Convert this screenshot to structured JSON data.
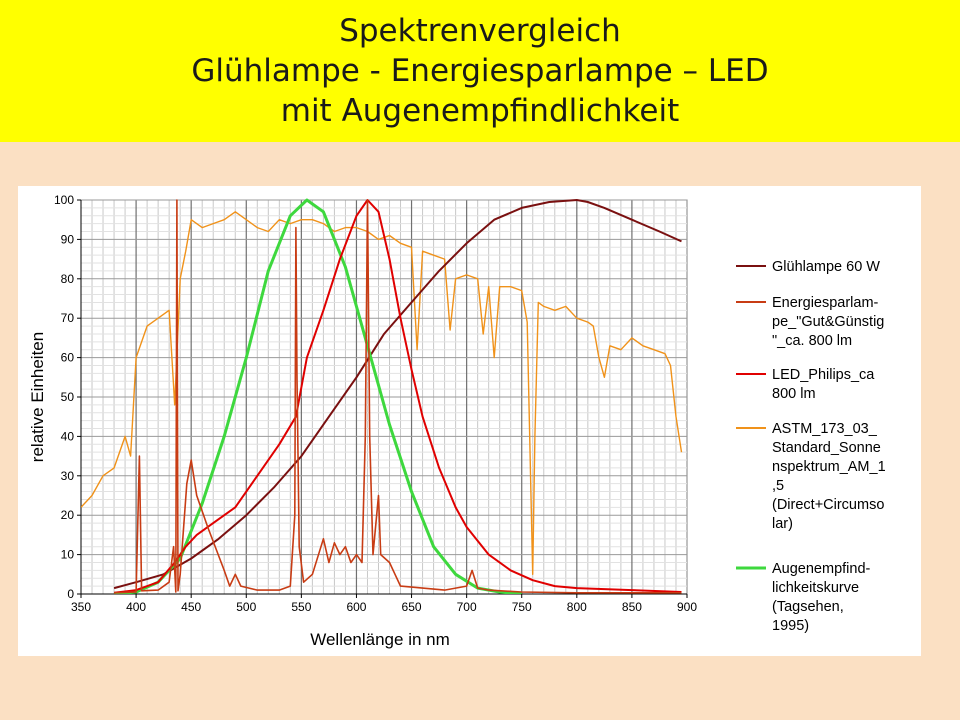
{
  "title": {
    "line1": "Spektrenvergleich",
    "line2": "Glühlampe - Energiesparlampe – LED",
    "line3": "mit Augenempfindlichkeit"
  },
  "chart_data": {
    "type": "line",
    "xlabel": "Wellenlänge in nm",
    "ylabel": "relative Einheiten",
    "xlim": [
      350,
      900
    ],
    "ylim": [
      0,
      100
    ],
    "xticks": [
      350,
      400,
      450,
      500,
      550,
      600,
      650,
      700,
      750,
      800,
      850,
      900
    ],
    "yticks": [
      0,
      10,
      20,
      30,
      40,
      50,
      60,
      70,
      80,
      90,
      100
    ],
    "grid": true,
    "legend_position": "right",
    "series": [
      {
        "name": "Glühlampe 60 W",
        "color": "#7a1010",
        "points": [
          [
            380,
            1.5
          ],
          [
            400,
            3
          ],
          [
            425,
            5
          ],
          [
            450,
            9
          ],
          [
            475,
            14
          ],
          [
            500,
            20
          ],
          [
            525,
            27
          ],
          [
            550,
            35
          ],
          [
            575,
            45
          ],
          [
            600,
            55
          ],
          [
            625,
            66
          ],
          [
            650,
            74
          ],
          [
            675,
            82
          ],
          [
            700,
            89
          ],
          [
            725,
            95
          ],
          [
            750,
            98
          ],
          [
            775,
            99.5
          ],
          [
            800,
            100
          ],
          [
            810,
            99.5
          ],
          [
            825,
            98
          ],
          [
            850,
            95
          ],
          [
            875,
            92
          ],
          [
            895,
            89.5
          ]
        ]
      },
      {
        "name": "Energiesparlam-pe_\"Gut&Günstig\"_ca. 800 lm",
        "color": "#c83c14",
        "points": [
          [
            380,
            0.3
          ],
          [
            400,
            0.5
          ],
          [
            403,
            35
          ],
          [
            405,
            0.8
          ],
          [
            420,
            1
          ],
          [
            430,
            3
          ],
          [
            434,
            12
          ],
          [
            436,
            0.5
          ],
          [
            437,
            100
          ],
          [
            438,
            0.8
          ],
          [
            440,
            5
          ],
          [
            446,
            28
          ],
          [
            450,
            34
          ],
          [
            455,
            25
          ],
          [
            465,
            17
          ],
          [
            480,
            6
          ],
          [
            485,
            2
          ],
          [
            490,
            5
          ],
          [
            495,
            2
          ],
          [
            510,
            1
          ],
          [
            530,
            1
          ],
          [
            540,
            2
          ],
          [
            544,
            20
          ],
          [
            545,
            93
          ],
          [
            546,
            55
          ],
          [
            548,
            12
          ],
          [
            552,
            3
          ],
          [
            560,
            5
          ],
          [
            570,
            14
          ],
          [
            575,
            8
          ],
          [
            580,
            13
          ],
          [
            585,
            10
          ],
          [
            590,
            12
          ],
          [
            595,
            8
          ],
          [
            600,
            10
          ],
          [
            605,
            8
          ],
          [
            608,
            40
          ],
          [
            610,
            100
          ],
          [
            612,
            40
          ],
          [
            615,
            10
          ],
          [
            620,
            25
          ],
          [
            622,
            10
          ],
          [
            630,
            8
          ],
          [
            635,
            5
          ],
          [
            640,
            2
          ],
          [
            660,
            1.5
          ],
          [
            680,
            1
          ],
          [
            700,
            2
          ],
          [
            705,
            6
          ],
          [
            710,
            1.5
          ],
          [
            720,
            1
          ],
          [
            750,
            0.5
          ],
          [
            800,
            0.3
          ],
          [
            895,
            0.3
          ]
        ]
      },
      {
        "name": "LED_Philips_ca 800 lm",
        "color": "#e00000",
        "points": [
          [
            380,
            0.3
          ],
          [
            400,
            1
          ],
          [
            420,
            3
          ],
          [
            435,
            8
          ],
          [
            445,
            12
          ],
          [
            455,
            15
          ],
          [
            470,
            18
          ],
          [
            490,
            22
          ],
          [
            510,
            30
          ],
          [
            530,
            38
          ],
          [
            545,
            45
          ],
          [
            555,
            60
          ],
          [
            570,
            72
          ],
          [
            585,
            85
          ],
          [
            600,
            96
          ],
          [
            610,
            100
          ],
          [
            620,
            97
          ],
          [
            630,
            85
          ],
          [
            640,
            70
          ],
          [
            650,
            57
          ],
          [
            660,
            45
          ],
          [
            675,
            32
          ],
          [
            690,
            22
          ],
          [
            700,
            17
          ],
          [
            720,
            10
          ],
          [
            740,
            6
          ],
          [
            760,
            3.5
          ],
          [
            780,
            2
          ],
          [
            800,
            1.5
          ],
          [
            850,
            1
          ],
          [
            895,
            0.5
          ]
        ]
      },
      {
        "name": "ASTM_173_03_Standard_Sonnenspektrum_AM_1,5 (Direct+Circumsolar)",
        "color": "#f0921a",
        "points": [
          [
            350,
            22
          ],
          [
            360,
            25
          ],
          [
            370,
            30
          ],
          [
            380,
            32
          ],
          [
            390,
            40
          ],
          [
            395,
            35
          ],
          [
            400,
            60
          ],
          [
            410,
            68
          ],
          [
            420,
            70
          ],
          [
            430,
            72
          ],
          [
            435,
            48
          ],
          [
            440,
            80
          ],
          [
            445,
            87
          ],
          [
            450,
            95
          ],
          [
            460,
            93
          ],
          [
            470,
            94
          ],
          [
            480,
            95
          ],
          [
            490,
            97
          ],
          [
            500,
            95
          ],
          [
            510,
            93
          ],
          [
            520,
            92
          ],
          [
            530,
            95
          ],
          [
            540,
            94
          ],
          [
            550,
            95
          ],
          [
            560,
            95
          ],
          [
            570,
            94
          ],
          [
            580,
            92
          ],
          [
            590,
            93
          ],
          [
            600,
            93
          ],
          [
            610,
            92
          ],
          [
            620,
            90
          ],
          [
            630,
            91
          ],
          [
            640,
            89
          ],
          [
            650,
            88
          ],
          [
            655,
            62
          ],
          [
            660,
            87
          ],
          [
            670,
            86
          ],
          [
            680,
            85
          ],
          [
            685,
            67
          ],
          [
            690,
            80
          ],
          [
            700,
            81
          ],
          [
            710,
            80
          ],
          [
            715,
            66
          ],
          [
            720,
            78
          ],
          [
            725,
            60
          ],
          [
            730,
            78
          ],
          [
            740,
            78
          ],
          [
            750,
            77
          ],
          [
            755,
            69
          ],
          [
            760,
            5
          ],
          [
            762,
            40
          ],
          [
            765,
            74
          ],
          [
            770,
            73
          ],
          [
            780,
            72
          ],
          [
            790,
            73
          ],
          [
            800,
            70
          ],
          [
            810,
            69
          ],
          [
            815,
            68
          ],
          [
            820,
            60
          ],
          [
            825,
            55
          ],
          [
            830,
            63
          ],
          [
            840,
            62
          ],
          [
            850,
            65
          ],
          [
            860,
            63
          ],
          [
            870,
            62
          ],
          [
            880,
            61
          ],
          [
            885,
            58
          ],
          [
            890,
            45
          ],
          [
            895,
            36
          ]
        ]
      },
      {
        "name": "Augenempfind-lichkeitskurve (Tagsehen, 1995)",
        "color": "#3ed83e",
        "points": [
          [
            380,
            0
          ],
          [
            400,
            0.5
          ],
          [
            420,
            3
          ],
          [
            440,
            9
          ],
          [
            460,
            23
          ],
          [
            480,
            40
          ],
          [
            500,
            60
          ],
          [
            520,
            82
          ],
          [
            540,
            96
          ],
          [
            555,
            100
          ],
          [
            570,
            97
          ],
          [
            590,
            83
          ],
          [
            610,
            63
          ],
          [
            630,
            43
          ],
          [
            650,
            26
          ],
          [
            670,
            12
          ],
          [
            690,
            5
          ],
          [
            710,
            1.5
          ],
          [
            730,
            0.5
          ],
          [
            750,
            0
          ]
        ]
      }
    ],
    "legend_lines": [
      [
        "Glühlampe 60 W"
      ],
      [
        "Energiesparlam-",
        "pe_\"Gut&Günstig",
        "\"_ca. 800 lm"
      ],
      [
        "LED_Philips_ca",
        "800 lm"
      ],
      [
        "ASTM_173_03_",
        "Standard_Sonne",
        "nspektrum_AM_1",
        ",5",
        "(Direct+Circumso",
        "lar)"
      ],
      [
        "Augenempfind-",
        "lichkeitskurve",
        "(Tagsehen,",
        "1995)"
      ]
    ]
  }
}
